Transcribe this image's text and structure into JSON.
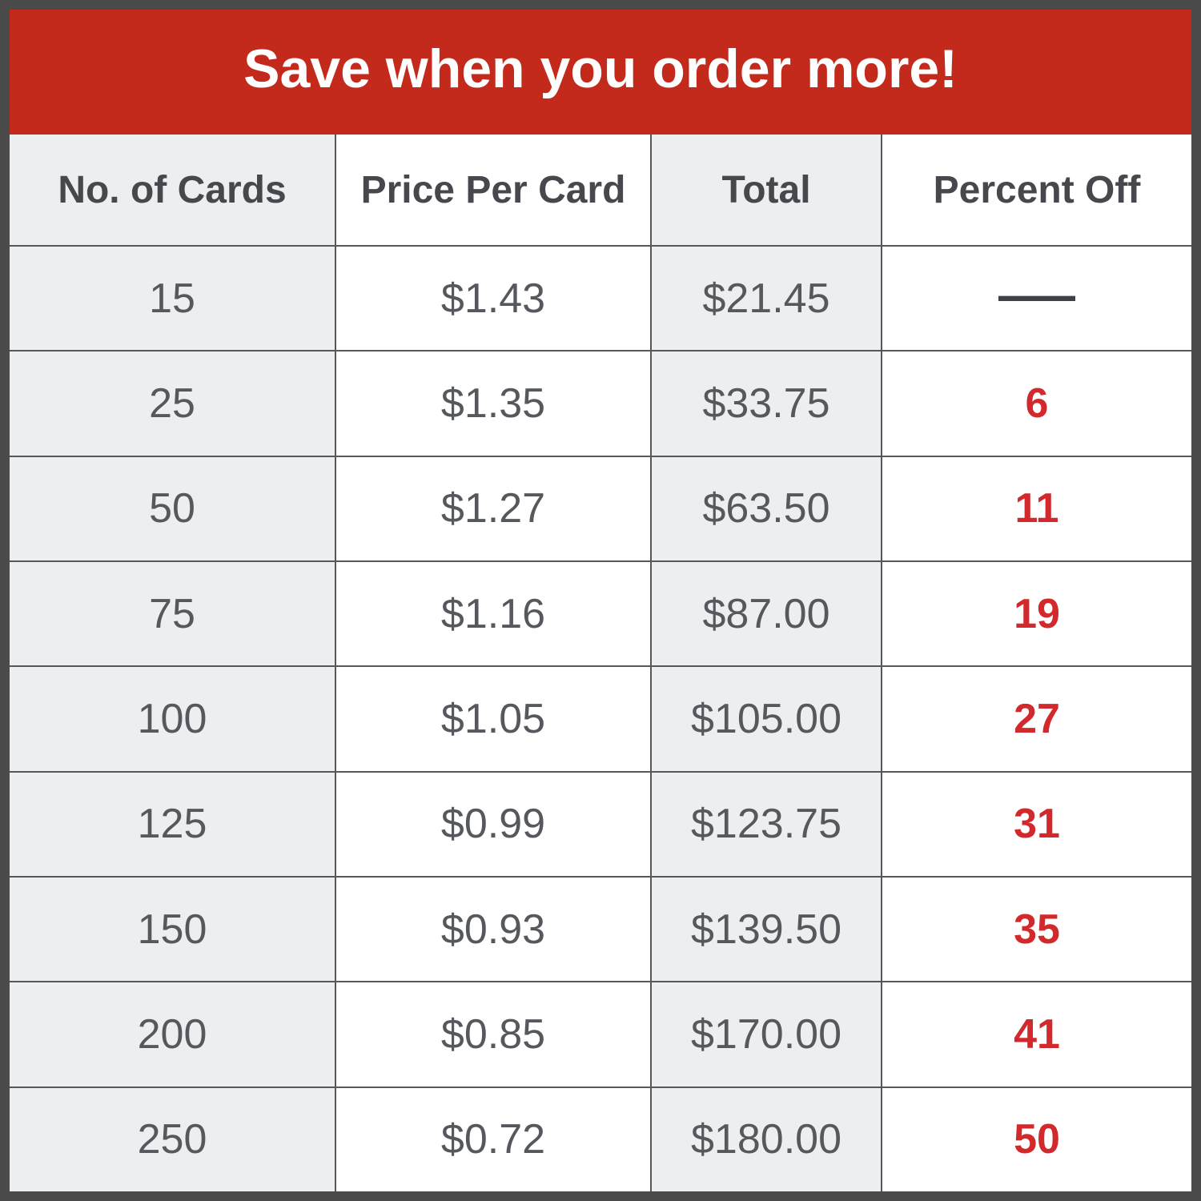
{
  "banner": {
    "title": "Save when you order more!",
    "bg_color": "#c42a1c",
    "text_color": "#ffffff"
  },
  "colors": {
    "frame": "#4b4b4b",
    "grid_line": "#55575b",
    "stripe_gray": "#eceef0",
    "header_text": "#46484d",
    "cell_text": "#55585d",
    "percent_red": "#d2292c"
  },
  "table": {
    "columns": [
      "No. of Cards",
      "Price Per Card",
      "Total",
      "Percent Off"
    ],
    "rows": [
      {
        "cards": "15",
        "price": "$1.43",
        "total": "$21.45",
        "percent": "—"
      },
      {
        "cards": "25",
        "price": "$1.35",
        "total": "$33.75",
        "percent": "6"
      },
      {
        "cards": "50",
        "price": "$1.27",
        "total": "$63.50",
        "percent": "11"
      },
      {
        "cards": "75",
        "price": "$1.16",
        "total": "$87.00",
        "percent": "19"
      },
      {
        "cards": "100",
        "price": "$1.05",
        "total": "$105.00",
        "percent": "27"
      },
      {
        "cards": "125",
        "price": "$0.99",
        "total": "$123.75",
        "percent": "31"
      },
      {
        "cards": "150",
        "price": "$0.93",
        "total": "$139.50",
        "percent": "35"
      },
      {
        "cards": "200",
        "price": "$0.85",
        "total": "$170.00",
        "percent": "41"
      },
      {
        "cards": "250",
        "price": "$0.72",
        "total": "$180.00",
        "percent": "50"
      }
    ]
  },
  "chart_data": {
    "type": "table",
    "title": "Save when you order more!",
    "columns": [
      "No. of Cards",
      "Price Per Card",
      "Total",
      "Percent Off"
    ],
    "rows": [
      [
        "15",
        "$1.43",
        "$21.45",
        null
      ],
      [
        "25",
        "$1.35",
        "$33.75",
        6
      ],
      [
        "50",
        "$1.27",
        "$63.50",
        11
      ],
      [
        "75",
        "$1.16",
        "$87.00",
        19
      ],
      [
        "100",
        "$1.05",
        "$105.00",
        27
      ],
      [
        "125",
        "$0.99",
        "$123.75",
        31
      ],
      [
        "150",
        "$0.93",
        "$139.50",
        35
      ],
      [
        "200",
        "$0.85",
        "$170.00",
        41
      ],
      [
        "250",
        "$0.72",
        "$180.00",
        50
      ]
    ]
  }
}
